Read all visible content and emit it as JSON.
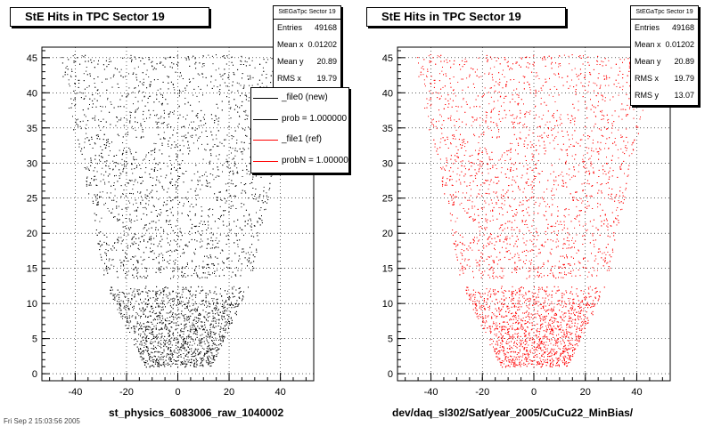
{
  "chart_data": [
    {
      "type": "scatter",
      "title": "StE Hits in TPC Sector 19",
      "xlabel": "st_physics_6083006_raw_1040002",
      "ylabel": "",
      "xlim": [
        -53,
        53
      ],
      "ylim": [
        -1,
        46.5
      ],
      "xticks": [
        -40,
        -20,
        0,
        20,
        40
      ],
      "yticks": [
        0,
        5,
        10,
        15,
        20,
        25,
        30,
        35,
        40,
        45
      ],
      "marker_color": "#000000",
      "grid": true,
      "stats": {
        "header": "StEGaTpc Sector 19",
        "rows": [
          {
            "label": "Entries",
            "value": "49168"
          },
          {
            "label": "Mean x",
            "value": "0.01202"
          },
          {
            "label": "Mean y",
            "value": "20.89"
          },
          {
            "label": "RMS x",
            "value": "19.79"
          }
        ]
      },
      "legend": {
        "placement": "top-right",
        "entries": [
          {
            "label": "_file0 (new)",
            "color": "#000000"
          },
          {
            "label": "prob = 1.000000",
            "color": "#000000"
          },
          {
            "label": "_file1 (ref)",
            "color": "#ff0000"
          },
          {
            "label": "probN = 1.000000",
            "color": "#ff0000"
          }
        ]
      }
    },
    {
      "type": "scatter",
      "title": "StE Hits in TPC Sector 19",
      "xlabel": "dev/daq_sl302/Sat/year_2005/CuCu22_MinBias/",
      "ylabel": "",
      "xlim": [
        -53,
        53
      ],
      "ylim": [
        -1,
        46.5
      ],
      "xticks": [
        -40,
        -20,
        0,
        20,
        40
      ],
      "yticks": [
        0,
        5,
        10,
        15,
        20,
        25,
        30,
        35,
        40,
        45
      ],
      "marker_color": "#ff0000",
      "grid": true,
      "stats": {
        "header": "StEGaTpc Sector 19",
        "rows": [
          {
            "label": "Entries",
            "value": "49168"
          },
          {
            "label": "Mean x",
            "value": "0.01202"
          },
          {
            "label": "Mean y",
            "value": "20.89"
          },
          {
            "label": "RMS x",
            "value": "19.79"
          },
          {
            "label": "RMS y",
            "value": "13.07"
          }
        ]
      }
    }
  ],
  "footer_text": "Fri Sep 2 15:03:56 2005"
}
